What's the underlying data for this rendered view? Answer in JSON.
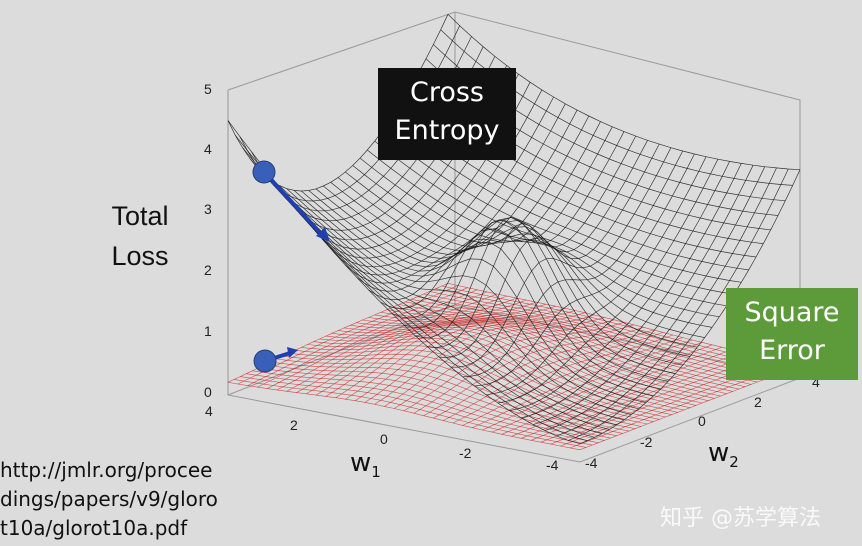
{
  "surfaces": {
    "cross_entropy": {
      "label_line1": "Cross",
      "label_line2": "Entropy",
      "box_color": "#111111"
    },
    "square_error": {
      "label_line1": "Square",
      "label_line2": "Error",
      "box_color": "#5c9a3a"
    }
  },
  "y_axis": {
    "label_line1": "Total",
    "label_line2": "Loss",
    "ticks": [
      "0",
      "1",
      "2",
      "3",
      "4",
      "5"
    ]
  },
  "w1_axis": {
    "label": "w",
    "subscript": "1",
    "ticks": [
      "4",
      "2",
      "0",
      "-2",
      "-4"
    ]
  },
  "w2_axis": {
    "label": "w",
    "subscript": "2",
    "ticks": [
      "-4",
      "-2",
      "0",
      "2",
      "4"
    ]
  },
  "source_url": {
    "line1": "http://jmlr.org/procee",
    "line2": "dings/papers/v9/gloro",
    "line3": "t10a/glorot10a.pdf"
  },
  "watermark": {
    "text": "知乎 @苏学算法"
  },
  "colors": {
    "mesh_black": "#1a1a1a",
    "mesh_red": "#c42020",
    "arrow": "#1f3fb0",
    "ball": "#3a5fb8"
  }
}
